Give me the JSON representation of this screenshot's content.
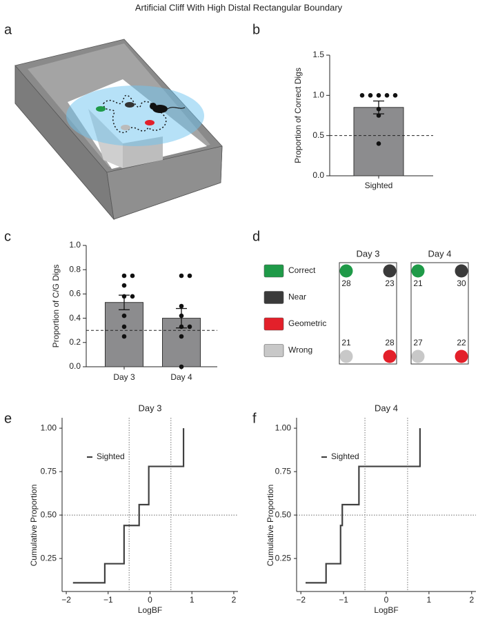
{
  "title": "Artificial Cliff With High Distal Rectangular Boundary",
  "panel_labels": [
    "a",
    "b",
    "c",
    "d",
    "e",
    "f"
  ],
  "chart_data": [
    {
      "type": "bar",
      "ylabel": "Proportion of Correct Digs",
      "categories": [
        "Sighted"
      ],
      "values": [
        0.85
      ],
      "errors": [
        0.08
      ],
      "points": [
        [
          1,
          1,
          1,
          1,
          1,
          0.83,
          0.75,
          0.4
        ]
      ],
      "color": "#8c8c8e",
      "reference_line": 0.5,
      "ylim": [
        0,
        1.5
      ],
      "yticks": [
        {
          "value": 0,
          "label": "0.0"
        },
        {
          "value": 0.5,
          "label": "0.5"
        },
        {
          "value": 1,
          "label": "1.0"
        },
        {
          "value": 1.5,
          "label": "1.5"
        }
      ]
    },
    {
      "type": "bar",
      "ylabel": "Proportion of C/G Digs",
      "categories": [
        "Day 3",
        "Day 4"
      ],
      "values": [
        0.53,
        0.4
      ],
      "errors": [
        0.06,
        0.08
      ],
      "points": [
        [
          0.75,
          0.75,
          0.67,
          0.58,
          0.58,
          0.42,
          0.33,
          0.25
        ],
        [
          0.75,
          0.75,
          0.5,
          0.42,
          0.33,
          0.33,
          0.25,
          0
        ]
      ],
      "color": "#8c8c8e",
      "reference_line": 0.3,
      "ylim": [
        0,
        1
      ],
      "yticks": [
        {
          "value": 0,
          "label": "0.0"
        },
        {
          "value": 0.2,
          "label": "0.2"
        },
        {
          "value": 0.4,
          "label": "0.4"
        },
        {
          "value": 0.6,
          "label": "0.6"
        },
        {
          "value": 0.8,
          "label": "0.8"
        },
        {
          "value": 1,
          "label": "1.0"
        }
      ]
    },
    {
      "type": "line",
      "title": "Day 3",
      "xlabel": "LogBF",
      "ylabel": "Cumulative Proportion",
      "legend": "upper left",
      "series": [
        {
          "name": "Sighted",
          "color": "#404040",
          "x": [
            -1.84,
            -1.08,
            -1.08,
            -0.62,
            -0.62,
            -0.26,
            -0.26,
            -0.03,
            -0.03,
            0.8,
            0.8
          ],
          "values": [
            0.11,
            0.11,
            0.22,
            0.22,
            0.44,
            0.44,
            0.56,
            0.56,
            0.78,
            0.78,
            1.0
          ]
        }
      ],
      "reference_lines_x": [
        -0.5,
        0.5
      ],
      "reference_lines_y": [
        0.5
      ],
      "xlim": [
        -2.1,
        2.1
      ],
      "ylim": [
        0.06,
        1.06
      ],
      "xticks": [
        {
          "value": -2,
          "label": "−2"
        },
        {
          "value": -1,
          "label": "−1"
        },
        0,
        1,
        2
      ],
      "yticks": [
        {
          "value": 0.25,
          "label": "0.25"
        },
        {
          "value": 0.5,
          "label": "0.50"
        },
        {
          "value": 0.75,
          "label": "0.75"
        },
        {
          "value": 1,
          "label": "1.00"
        }
      ]
    },
    {
      "type": "line",
      "title": "Day 4",
      "xlabel": "LogBF",
      "ylabel": "Cumulative Proportion",
      "legend": "upper left",
      "series": [
        {
          "name": "Sighted",
          "color": "#404040",
          "x": [
            -1.89,
            -1.41,
            -1.41,
            -1.07,
            -1.07,
            -1.03,
            -1.03,
            -0.64,
            -0.64,
            0.79,
            0.79
          ],
          "values": [
            0.11,
            0.11,
            0.22,
            0.22,
            0.44,
            0.44,
            0.56,
            0.56,
            0.78,
            0.78,
            1.0
          ]
        }
      ],
      "reference_lines_x": [
        -0.5,
        0.5
      ],
      "reference_lines_y": [
        0.5
      ],
      "xlim": [
        -2.1,
        2.1
      ],
      "ylim": [
        0.06,
        1.06
      ],
      "xticks": [
        {
          "value": -2,
          "label": "−2"
        },
        {
          "value": -1,
          "label": "−1"
        },
        0,
        1,
        2
      ],
      "yticks": [
        {
          "value": 0.25,
          "label": "0.25"
        },
        {
          "value": 0.5,
          "label": "0.50"
        },
        {
          "value": 0.75,
          "label": "0.75"
        },
        {
          "value": 1,
          "label": "1.00"
        }
      ]
    }
  ],
  "arena": {
    "legend": [
      {
        "label": "Correct",
        "color": "#1f9a48"
      },
      {
        "label": "Near",
        "color": "#3a3a3a"
      },
      {
        "label": "Geometric",
        "color": "#e3202a"
      },
      {
        "label": "Wrong",
        "color": "#c8c8c8"
      }
    ],
    "days": [
      {
        "title": "Day 3",
        "counts": [
          28,
          23,
          28,
          21
        ]
      },
      {
        "title": "Day 4",
        "counts": [
          21,
          30,
          22,
          27
        ]
      }
    ]
  }
}
